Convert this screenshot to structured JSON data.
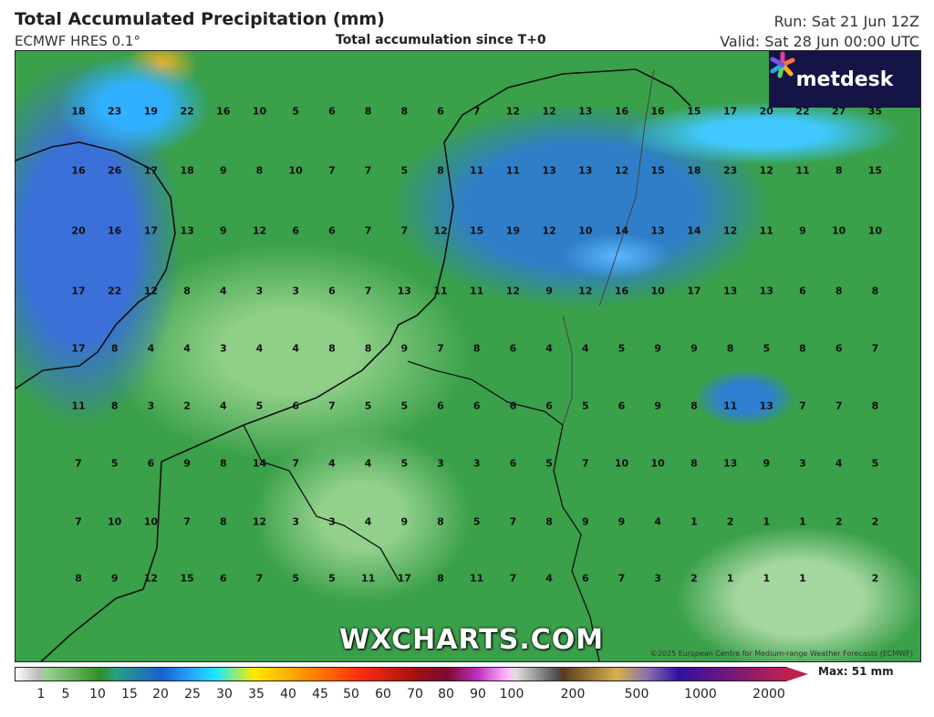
{
  "header": {
    "title": "Total Accumulated Precipitation (mm)",
    "model": "ECMWF HRES 0.1°",
    "subtitle": "Total accumulation since T+0",
    "run": "Run: Sat 21 Jun 12Z",
    "valid": "Valid: Sat 28 Jun 00:00 UTC"
  },
  "logo": {
    "text": "metdesk"
  },
  "watermark": "WXCHARTS.COM",
  "copyright": "©2025 European Centre for Medium-range Weather Forecasts (ECMWF)",
  "grid_values": [
    [
      18,
      23,
      19,
      22,
      16,
      10,
      5,
      6,
      8,
      8,
      6,
      7,
      12,
      12,
      13,
      16,
      16,
      15,
      17,
      20,
      22,
      27,
      35
    ],
    [
      16,
      26,
      17,
      18,
      9,
      8,
      10,
      7,
      7,
      5,
      8,
      11,
      11,
      13,
      13,
      12,
      15,
      18,
      23,
      12,
      11,
      8,
      15
    ],
    [
      20,
      16,
      17,
      13,
      9,
      12,
      6,
      6,
      7,
      7,
      12,
      15,
      19,
      12,
      10,
      14,
      13,
      14,
      12,
      11,
      9,
      10,
      10
    ],
    [
      17,
      22,
      12,
      8,
      4,
      3,
      3,
      6,
      7,
      13,
      11,
      11,
      12,
      9,
      12,
      16,
      10,
      17,
      13,
      13,
      6,
      8,
      8
    ],
    [
      17,
      8,
      4,
      4,
      3,
      4,
      4,
      8,
      8,
      9,
      7,
      8,
      6,
      4,
      4,
      5,
      9,
      9,
      8,
      5,
      8,
      6,
      7
    ],
    [
      11,
      8,
      3,
      2,
      4,
      5,
      6,
      7,
      5,
      5,
      6,
      6,
      6,
      6,
      5,
      6,
      9,
      8,
      11,
      13,
      7,
      7,
      8
    ],
    [
      7,
      5,
      6,
      9,
      8,
      14,
      7,
      4,
      4,
      5,
      3,
      3,
      6,
      5,
      7,
      10,
      10,
      8,
      13,
      9,
      3,
      4,
      5
    ],
    [
      7,
      10,
      10,
      7,
      8,
      12,
      3,
      3,
      4,
      9,
      8,
      5,
      7,
      8,
      9,
      9,
      4,
      1,
      2,
      1,
      1,
      2,
      2
    ],
    [
      8,
      9,
      12,
      15,
      6,
      7,
      5,
      5,
      11,
      17,
      8,
      11,
      7,
      4,
      6,
      7,
      3,
      2,
      1,
      1,
      1,
      null,
      2
    ]
  ],
  "colorbar": {
    "ticks": [
      "1",
      "5",
      "10",
      "15",
      "20",
      "25",
      "30",
      "35",
      "40",
      "45",
      "50",
      "60",
      "70",
      "80",
      "90",
      "100",
      "200",
      "500",
      "1000",
      "2000"
    ],
    "max_label": "Max: 51 mm"
  }
}
